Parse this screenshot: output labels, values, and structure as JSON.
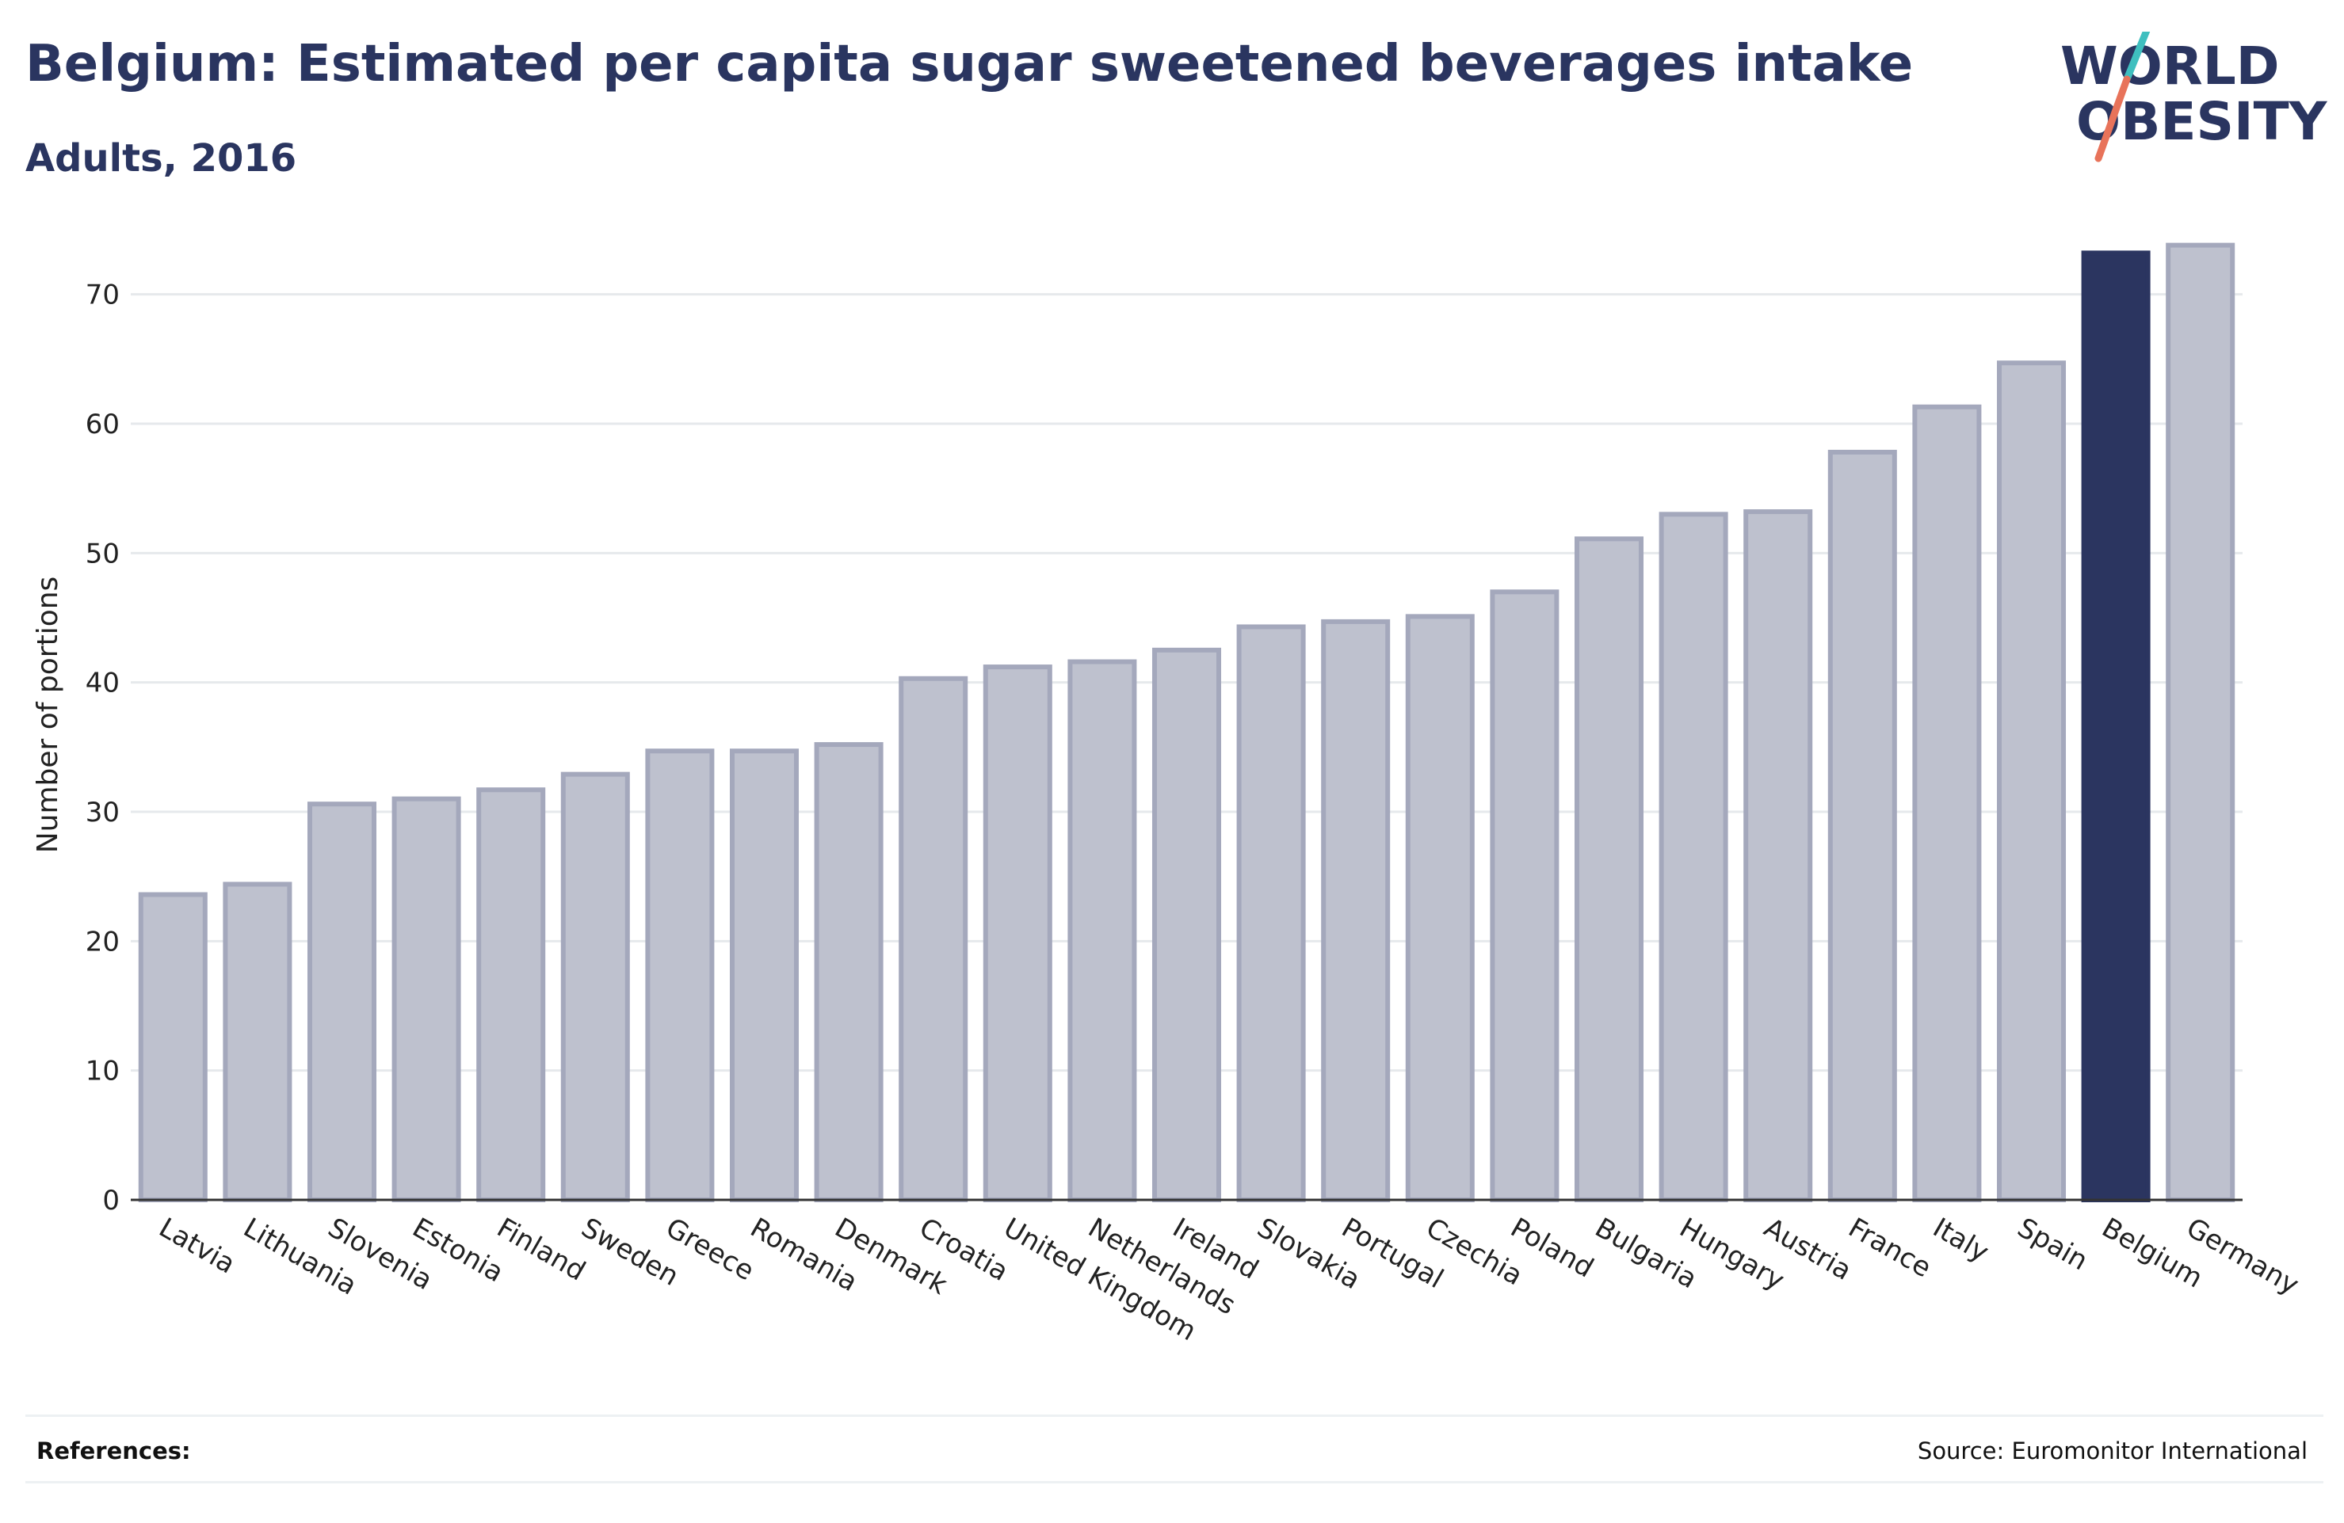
{
  "header": {
    "title": "Belgium: Estimated per capita sugar sweetened beverages intake",
    "subtitle": "Adults, 2016"
  },
  "logo": {
    "line1": "WORLD",
    "line2": "OBESITY"
  },
  "colors": {
    "text": "#2a3560",
    "bar": "#bec1ce",
    "bar_stroke": "#a4a8bc",
    "highlight": "#2b3560",
    "grid": "#e6e9ec",
    "logo_teal": "#3fbfbf",
    "logo_coral": "#e8735a"
  },
  "chart_data": {
    "type": "bar",
    "ylabel": "Number of portions",
    "ylim": [
      0,
      75
    ],
    "yticks": [
      0,
      10,
      20,
      30,
      40,
      50,
      60,
      70
    ],
    "grid": true,
    "highlight": "Belgium",
    "categories": [
      "Latvia",
      "Lithuania",
      "Slovenia",
      "Estonia",
      "Finland",
      "Sweden",
      "Greece",
      "Romania",
      "Denmark",
      "Croatia",
      "United Kingdom",
      "Netherlands",
      "Ireland",
      "Slovakia",
      "Portugal",
      "Czechia",
      "Poland",
      "Bulgaria",
      "Hungary",
      "Austria",
      "France",
      "Italy",
      "Spain",
      "Belgium",
      "Germany"
    ],
    "values": [
      23.6,
      24.4,
      30.6,
      31.0,
      31.7,
      32.9,
      34.7,
      34.7,
      35.2,
      40.3,
      41.2,
      41.6,
      42.5,
      44.3,
      44.7,
      45.1,
      47.0,
      51.1,
      53.0,
      53.2,
      57.8,
      61.3,
      64.7,
      73.2,
      73.8
    ]
  },
  "footer": {
    "references_label": "References:",
    "source": "Source: Euromonitor International"
  }
}
